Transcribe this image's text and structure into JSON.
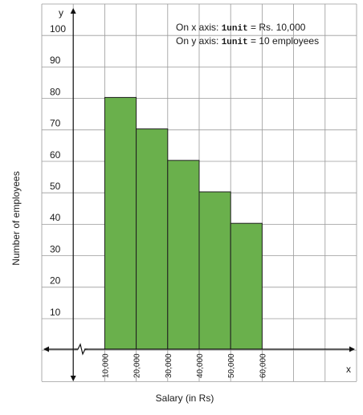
{
  "chart_data": {
    "type": "bar",
    "histogram": true,
    "categories": [
      "10,000-20,000",
      "20,000-30,000",
      "30,000-40,000",
      "40,000-50,000",
      "50,000-60,000"
    ],
    "bins": [
      {
        "from": 10000,
        "to": 20000,
        "value": 80
      },
      {
        "from": 20000,
        "to": 30000,
        "value": 70
      },
      {
        "from": 30000,
        "to": 40000,
        "value": 60
      },
      {
        "from": 40000,
        "to": 50000,
        "value": 50
      },
      {
        "from": 50000,
        "to": 60000,
        "value": 40
      }
    ],
    "xlabel": "Salary (in Rs)",
    "ylabel": "Number of employees",
    "x_axis_letter": "x",
    "y_axis_letter": "y",
    "x_ticks": [
      10000,
      20000,
      30000,
      40000,
      50000,
      60000
    ],
    "x_tick_labels": [
      "10,000",
      "20,000",
      "30,000",
      "40,000",
      "50,000",
      "60,000"
    ],
    "y_ticks": [
      10,
      20,
      30,
      40,
      50,
      60,
      70,
      80,
      90,
      100
    ],
    "y_tick_labels": [
      "10",
      "20",
      "30",
      "40",
      "50",
      "60",
      "70",
      "80",
      "90",
      "100"
    ],
    "ylim": [
      0,
      100
    ],
    "x_axis_break": true,
    "grid": true,
    "annotations": [
      {
        "prefix": "On x axis: ",
        "unit": "1unit",
        "suffix": " = Rs. 10,000"
      },
      {
        "prefix": "On y axis: ",
        "unit": "1unit",
        "suffix": " = 10 employees"
      }
    ],
    "bar_color": "#6ab04c",
    "bar_edge_color": "#1f1f1f",
    "grid_color": "#9a9a9a"
  }
}
